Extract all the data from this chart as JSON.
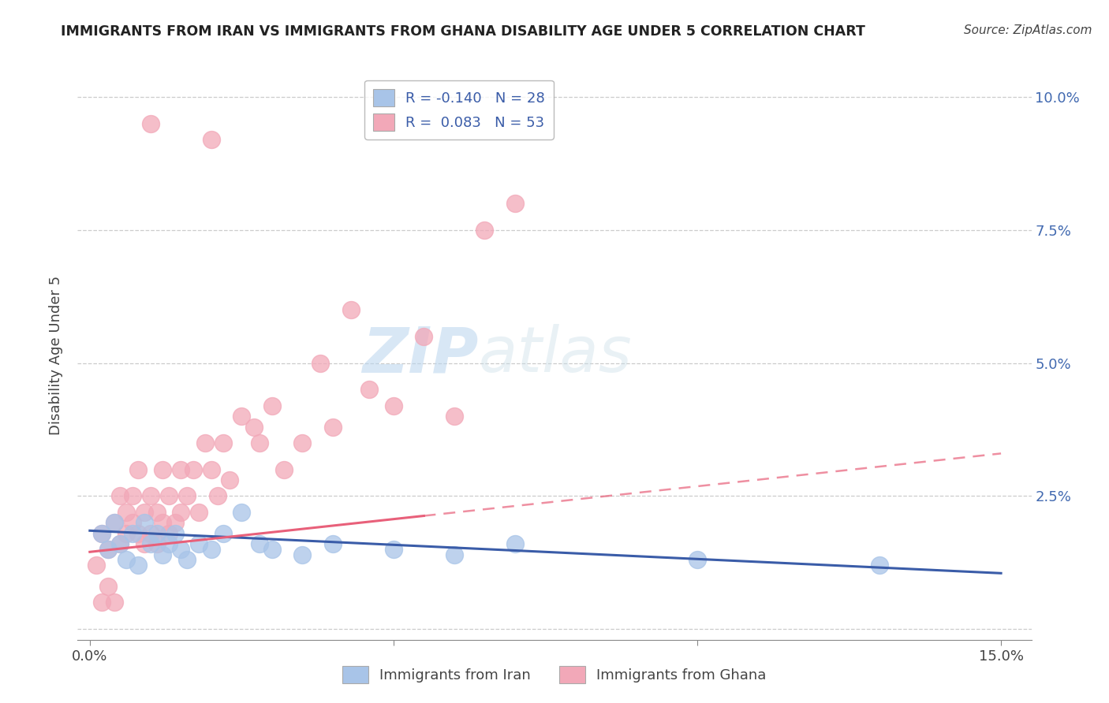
{
  "title": "IMMIGRANTS FROM IRAN VS IMMIGRANTS FROM GHANA DISABILITY AGE UNDER 5 CORRELATION CHART",
  "source": "Source: ZipAtlas.com",
  "ylabel": "Disability Age Under 5",
  "xlabel": "",
  "xlim": [
    -0.002,
    0.155
  ],
  "ylim": [
    -0.002,
    0.105
  ],
  "xticks": [
    0.0,
    0.05,
    0.1,
    0.15
  ],
  "yticks": [
    0.0,
    0.025,
    0.05,
    0.075,
    0.1
  ],
  "xticklabels": [
    "0.0%",
    "",
    "",
    "15.0%"
  ],
  "yticklabels_left": [
    "",
    "",
    "",
    "",
    ""
  ],
  "yticklabels_right": [
    "",
    "2.5%",
    "5.0%",
    "7.5%",
    "10.0%"
  ],
  "iran_color": "#a8c4e8",
  "ghana_color": "#f2a8b8",
  "iran_line_color": "#3a5ca8",
  "ghana_line_color": "#e8607a",
  "iran_R": -0.14,
  "iran_N": 28,
  "ghana_R": 0.083,
  "ghana_N": 53,
  "iran_scatter_x": [
    0.002,
    0.003,
    0.004,
    0.005,
    0.006,
    0.007,
    0.008,
    0.009,
    0.01,
    0.011,
    0.012,
    0.013,
    0.014,
    0.015,
    0.016,
    0.018,
    0.02,
    0.022,
    0.025,
    0.028,
    0.03,
    0.035,
    0.04,
    0.05,
    0.06,
    0.07,
    0.1,
    0.13
  ],
  "iran_scatter_y": [
    0.018,
    0.015,
    0.02,
    0.016,
    0.013,
    0.018,
    0.012,
    0.02,
    0.016,
    0.018,
    0.014,
    0.016,
    0.018,
    0.015,
    0.013,
    0.016,
    0.015,
    0.018,
    0.022,
    0.016,
    0.015,
    0.014,
    0.016,
    0.015,
    0.014,
    0.016,
    0.013,
    0.012
  ],
  "ghana_scatter_x": [
    0.001,
    0.002,
    0.003,
    0.004,
    0.005,
    0.005,
    0.006,
    0.006,
    0.007,
    0.007,
    0.008,
    0.008,
    0.009,
    0.009,
    0.01,
    0.01,
    0.011,
    0.011,
    0.012,
    0.012,
    0.013,
    0.013,
    0.014,
    0.015,
    0.015,
    0.016,
    0.017,
    0.018,
    0.019,
    0.02,
    0.021,
    0.022,
    0.023,
    0.025,
    0.027,
    0.028,
    0.03,
    0.032,
    0.035,
    0.038,
    0.04,
    0.043,
    0.046,
    0.05,
    0.055,
    0.06,
    0.065,
    0.07,
    0.002,
    0.003,
    0.004,
    0.01,
    0.02
  ],
  "ghana_scatter_y": [
    0.012,
    0.018,
    0.015,
    0.02,
    0.016,
    0.025,
    0.018,
    0.022,
    0.02,
    0.025,
    0.018,
    0.03,
    0.022,
    0.016,
    0.025,
    0.018,
    0.022,
    0.016,
    0.02,
    0.03,
    0.018,
    0.025,
    0.02,
    0.03,
    0.022,
    0.025,
    0.03,
    0.022,
    0.035,
    0.03,
    0.025,
    0.035,
    0.028,
    0.04,
    0.038,
    0.035,
    0.042,
    0.03,
    0.035,
    0.05,
    0.038,
    0.06,
    0.045,
    0.042,
    0.055,
    0.04,
    0.075,
    0.08,
    0.005,
    0.008,
    0.005,
    0.095,
    0.092
  ],
  "watermark_zip": "ZIP",
  "watermark_atlas": "atlas",
  "background_color": "#ffffff",
  "grid_color": "#cccccc",
  "ghana_line_x_solid_end": 0.055,
  "iran_line_start_y": 0.0185,
  "iran_line_end_y": 0.0105
}
